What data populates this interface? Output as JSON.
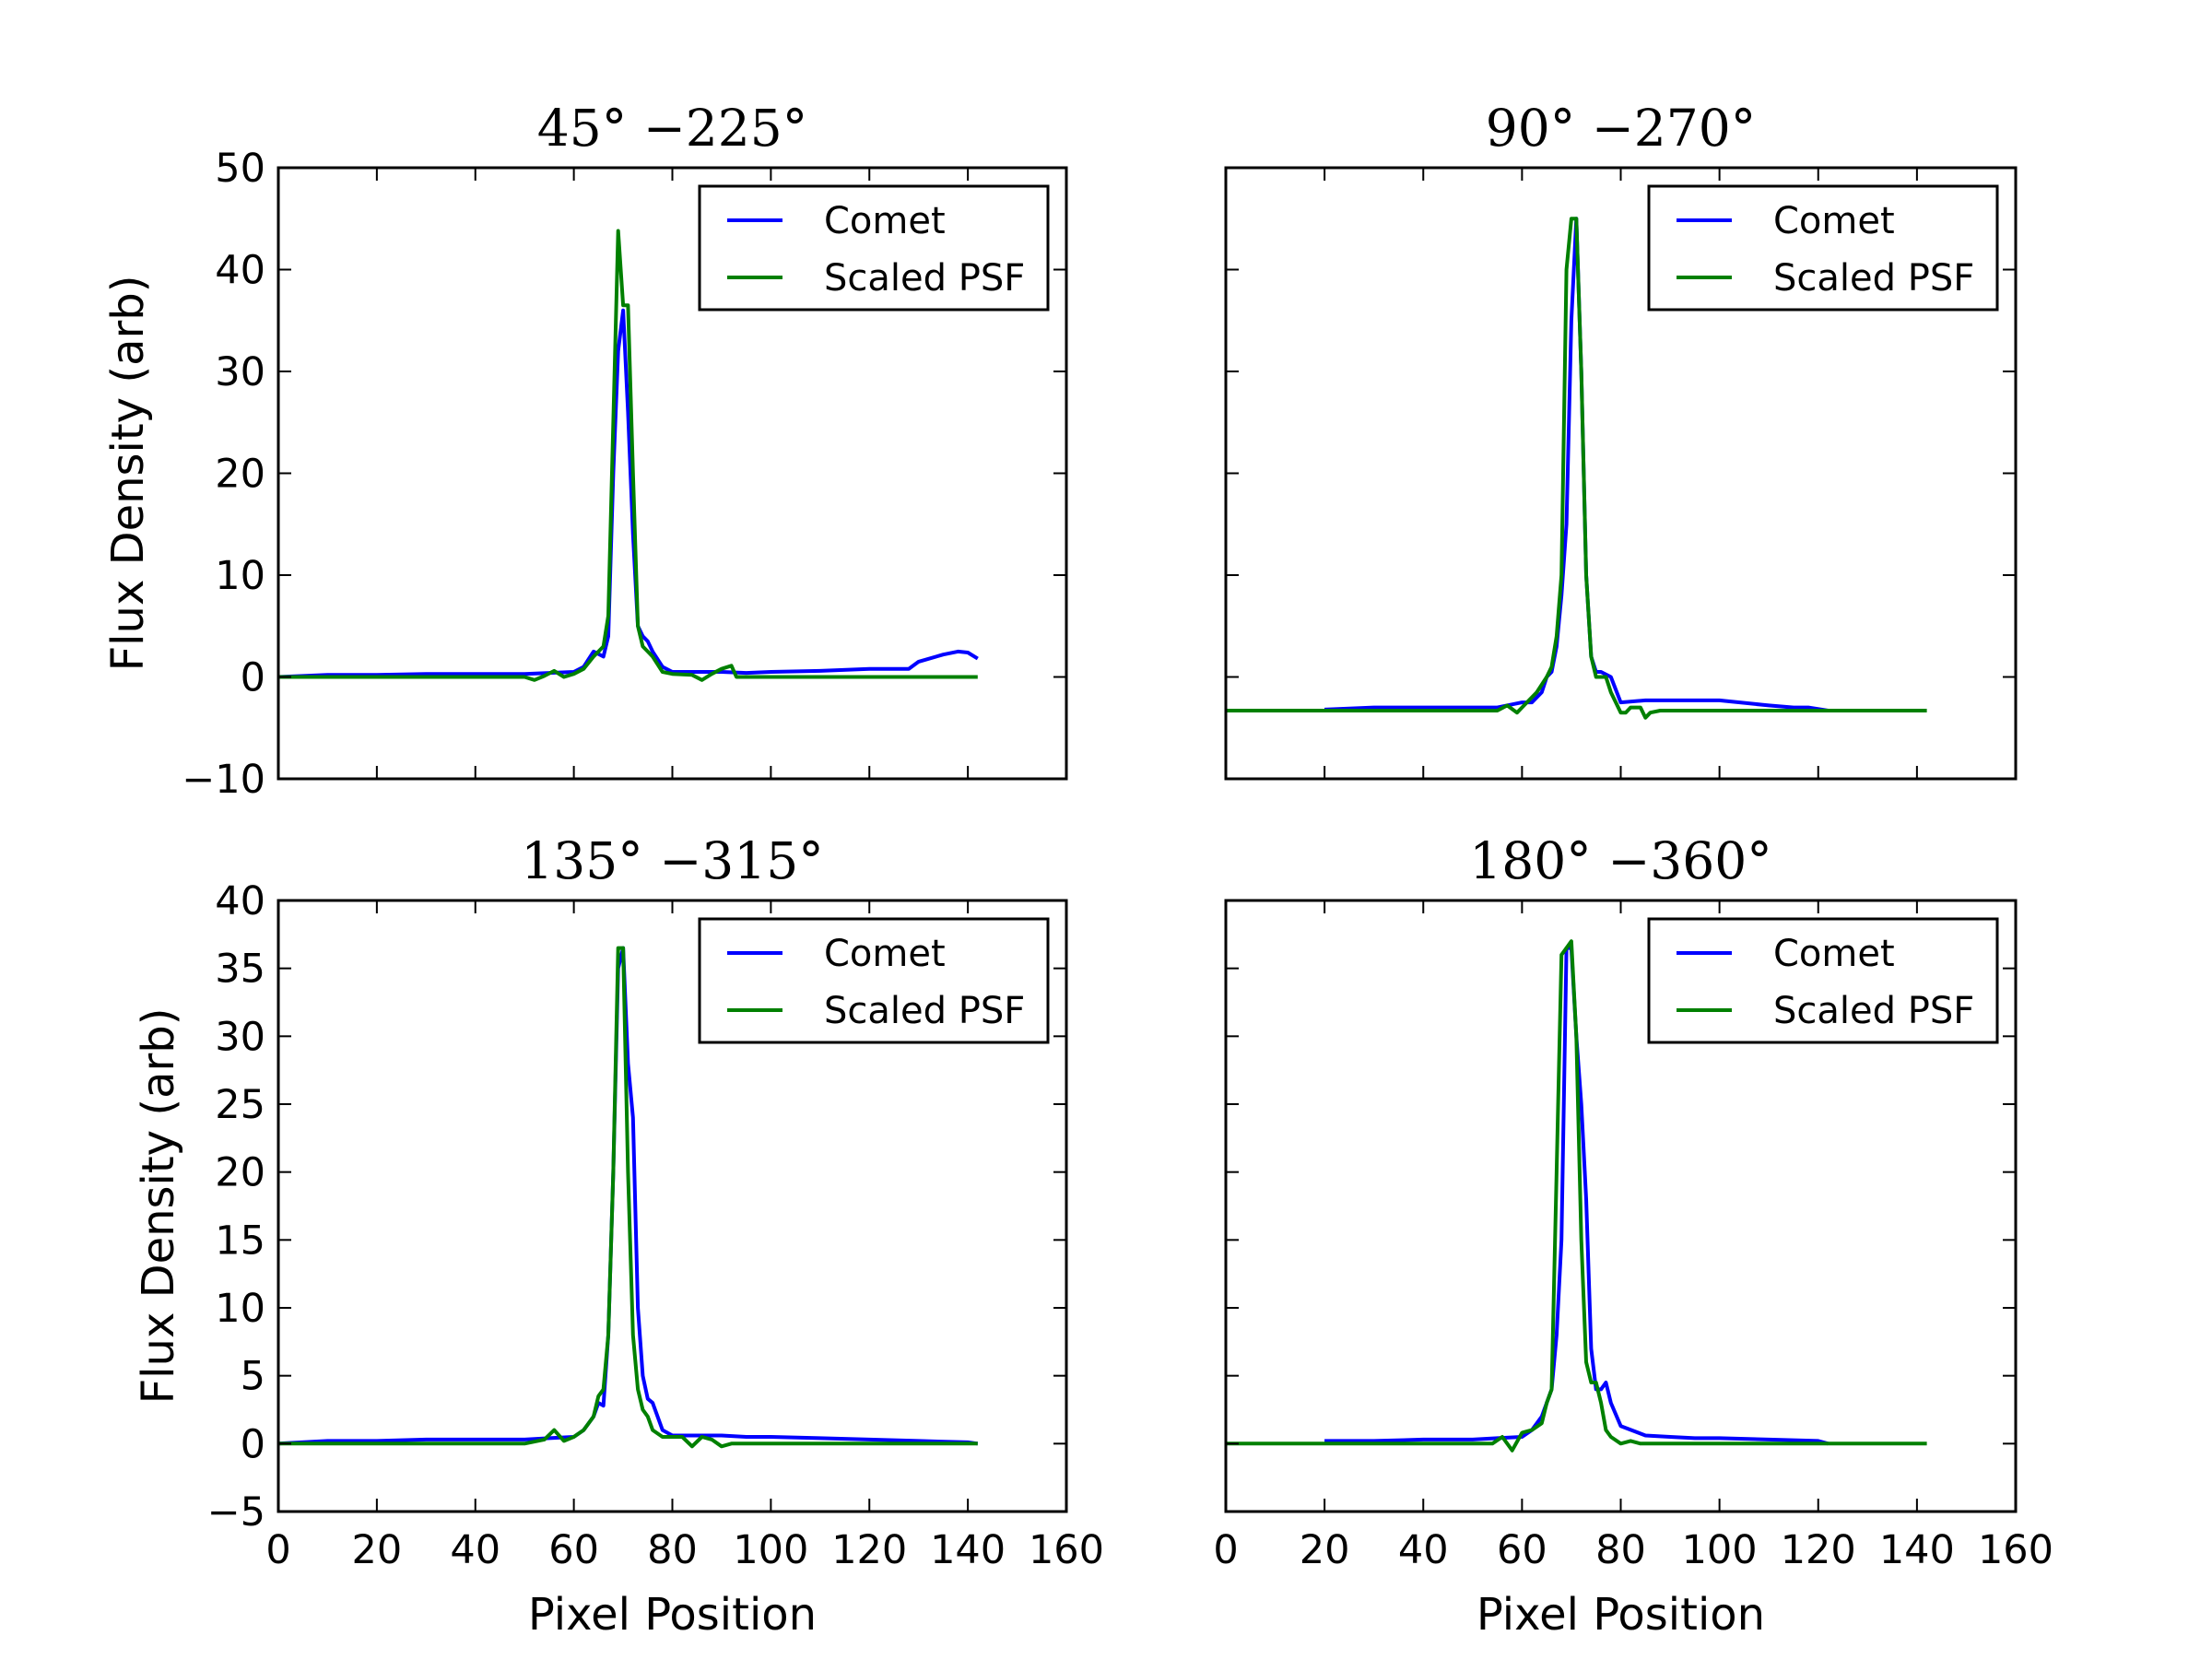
{
  "chart_data": [
    {
      "type": "line",
      "title": "45° −225°",
      "xlabel": "",
      "ylabel": "Flux Density (arb)",
      "xlim": [
        0,
        160
      ],
      "ylim": [
        -10,
        50
      ],
      "xticks": [],
      "yticks": [
        "−10",
        "0",
        "10",
        "20",
        "30",
        "40",
        "50"
      ],
      "legend": [
        "Comet",
        "Scaled PSF"
      ],
      "legend_position": "top-right",
      "series": [
        {
          "name": "Comet",
          "color": "#0000ff",
          "x": [
            0,
            10,
            20,
            30,
            40,
            50,
            60,
            62,
            64,
            66,
            67,
            68,
            69,
            70,
            71,
            72,
            73,
            74,
            75,
            76,
            78,
            80,
            85,
            90,
            95,
            100,
            110,
            120,
            128,
            130,
            135,
            138,
            140,
            142
          ],
          "y": [
            0,
            0.2,
            0.2,
            0.3,
            0.3,
            0.3,
            0.5,
            1,
            2.5,
            2,
            4,
            20,
            32,
            36,
            26,
            14,
            5,
            4,
            3.5,
            2.5,
            1,
            0.5,
            0.5,
            0.5,
            0.4,
            0.5,
            0.6,
            0.8,
            0.8,
            1.5,
            2.2,
            2.5,
            2.4,
            1.8
          ]
        },
        {
          "name": "Scaled PSF",
          "color": "#008000",
          "x": [
            0,
            10,
            20,
            30,
            40,
            50,
            52,
            54,
            56,
            58,
            60,
            62,
            64,
            66,
            67,
            68,
            69,
            70,
            71,
            72,
            73,
            74,
            75,
            76,
            78,
            80,
            84,
            86,
            88,
            90,
            92,
            93,
            95,
            100,
            110,
            120,
            130,
            142
          ],
          "y": [
            0,
            0,
            0,
            0,
            0,
            0,
            -0.3,
            0.1,
            0.6,
            0,
            0.3,
            0.8,
            2,
            3,
            6,
            25,
            43.8,
            36.5,
            36.5,
            20,
            5,
            3,
            2.5,
            2,
            0.5,
            0.3,
            0.2,
            -0.3,
            0.3,
            0.8,
            1.1,
            0,
            0,
            0,
            0,
            0,
            0,
            0
          ]
        }
      ]
    },
    {
      "type": "line",
      "title": "90° −270°",
      "xlabel": "",
      "ylabel": "",
      "xlim": [
        0,
        160
      ],
      "ylim": [
        -10,
        50
      ],
      "xticks": [],
      "yticks": [],
      "legend": [
        "Comet",
        "Scaled PSF"
      ],
      "legend_position": "top-right",
      "series": [
        {
          "name": "Comet",
          "color": "#0000ff",
          "x": [
            20,
            30,
            40,
            50,
            55,
            60,
            62,
            64,
            65,
            66,
            67,
            68,
            69,
            70,
            71,
            72,
            73,
            74,
            75,
            76,
            78,
            80,
            85,
            90,
            95,
            100,
            110,
            115,
            118,
            122
          ],
          "y": [
            -3.2,
            -3,
            -3,
            -3,
            -3,
            -2.5,
            -2.5,
            -1.5,
            0,
            0.5,
            3,
            8,
            15,
            35,
            45,
            30,
            10,
            2,
            0.5,
            0.5,
            0,
            -2.5,
            -2.3,
            -2.3,
            -2.3,
            -2.3,
            -2.8,
            -3,
            -3,
            -3.3
          ]
        },
        {
          "name": "Scaled PSF",
          "color": "#008000",
          "x": [
            0,
            20,
            40,
            55,
            57,
            59,
            61,
            63,
            65,
            66,
            67,
            68,
            69,
            70,
            71,
            72,
            73,
            74,
            75,
            76,
            77,
            78,
            80,
            81,
            82,
            84,
            85,
            86,
            88,
            90,
            100,
            120,
            142
          ],
          "y": [
            -3.3,
            -3.3,
            -3.3,
            -3.3,
            -2.8,
            -3.5,
            -2.5,
            -1.5,
            0,
            1,
            4,
            10,
            40,
            45,
            45,
            30,
            10,
            2,
            0,
            0,
            0,
            -1.5,
            -3.5,
            -3.5,
            -3,
            -3,
            -4,
            -3.5,
            -3.3,
            -3.3,
            -3.3,
            -3.3,
            -3.3
          ]
        }
      ]
    },
    {
      "type": "line",
      "title": "135° −315°",
      "xlabel": "Pixel Position",
      "ylabel": "Flux Density (arb)",
      "xlim": [
        0,
        160
      ],
      "ylim": [
        -5,
        40
      ],
      "xticks": [
        "0",
        "20",
        "40",
        "60",
        "80",
        "100",
        "120",
        "140",
        "160"
      ],
      "yticks": [
        "−5",
        "0",
        "5",
        "10",
        "15",
        "20",
        "25",
        "30",
        "35",
        "40"
      ],
      "legend": [
        "Comet",
        "Scaled PSF"
      ],
      "legend_position": "top-right",
      "series": [
        {
          "name": "Comet",
          "color": "#0000ff",
          "x": [
            0,
            10,
            20,
            30,
            40,
            50,
            55,
            60,
            62,
            64,
            65,
            66,
            67,
            68,
            69,
            70,
            71,
            72,
            73,
            74,
            75,
            76,
            78,
            80,
            85,
            90,
            95,
            100,
            110,
            120,
            130,
            140,
            142
          ],
          "y": [
            0,
            0.2,
            0.2,
            0.3,
            0.3,
            0.3,
            0.4,
            0.5,
            1,
            2,
            3,
            2.8,
            8,
            20,
            35,
            36.5,
            28,
            24,
            10,
            5,
            3.3,
            3,
            1,
            0.6,
            0.6,
            0.6,
            0.5,
            0.5,
            0.4,
            0.3,
            0.2,
            0.1,
            0
          ]
        },
        {
          "name": "Scaled PSF",
          "color": "#008000",
          "x": [
            0,
            10,
            20,
            30,
            40,
            50,
            54,
            56,
            58,
            60,
            62,
            64,
            65,
            66,
            67,
            68,
            69,
            70,
            71,
            72,
            73,
            74,
            75,
            76,
            78,
            80,
            82,
            84,
            86,
            88,
            90,
            92,
            95,
            100,
            120,
            142
          ],
          "y": [
            0,
            0,
            0,
            0,
            0,
            0,
            0.3,
            1,
            0.2,
            0.5,
            1,
            2,
            3.5,
            4,
            8,
            20,
            36.5,
            36.5,
            20,
            8,
            4,
            2.5,
            2,
            1,
            0.5,
            0.5,
            0.5,
            -0.2,
            0.5,
            0.3,
            -0.2,
            0,
            0,
            0,
            0,
            0
          ]
        }
      ]
    },
    {
      "type": "line",
      "title": "180° −360°",
      "xlabel": "Pixel Position",
      "ylabel": "",
      "xlim": [
        0,
        160
      ],
      "ylim": [
        -5,
        40
      ],
      "xticks": [
        "0",
        "20",
        "40",
        "60",
        "80",
        "100",
        "120",
        "140",
        "160"
      ],
      "yticks": [],
      "legend": [
        "Comet",
        "Scaled PSF"
      ],
      "legend_position": "top-right",
      "series": [
        {
          "name": "Comet",
          "color": "#0000ff",
          "x": [
            20,
            30,
            40,
            50,
            55,
            60,
            62,
            64,
            65,
            66,
            67,
            68,
            69,
            70,
            71,
            72,
            73,
            74,
            75,
            76,
            77,
            78,
            80,
            85,
            90,
            95,
            100,
            110,
            120,
            122
          ],
          "y": [
            0.2,
            0.2,
            0.3,
            0.3,
            0.4,
            0.5,
            1,
            2,
            3,
            4,
            8,
            15,
            36.5,
            36.5,
            30,
            25,
            18,
            7,
            4,
            4,
            4.5,
            3,
            1.3,
            0.6,
            0.5,
            0.4,
            0.4,
            0.3,
            0.2,
            0
          ]
        },
        {
          "name": "Scaled PSF",
          "color": "#008000",
          "x": [
            0,
            20,
            40,
            54,
            56,
            58,
            60,
            62,
            64,
            65,
            66,
            67,
            68,
            69,
            70,
            71,
            72,
            73,
            74,
            75,
            76,
            77,
            78,
            80,
            82,
            84,
            86,
            90,
            100,
            120,
            142
          ],
          "y": [
            0,
            0,
            0,
            0,
            0.5,
            -0.5,
            0.8,
            1,
            1.5,
            3,
            4,
            20,
            36,
            36.5,
            37,
            30,
            15,
            6,
            4.5,
            4.5,
            3,
            1,
            0.5,
            0,
            0.2,
            0,
            0,
            0,
            0,
            0,
            0
          ]
        }
      ]
    }
  ]
}
